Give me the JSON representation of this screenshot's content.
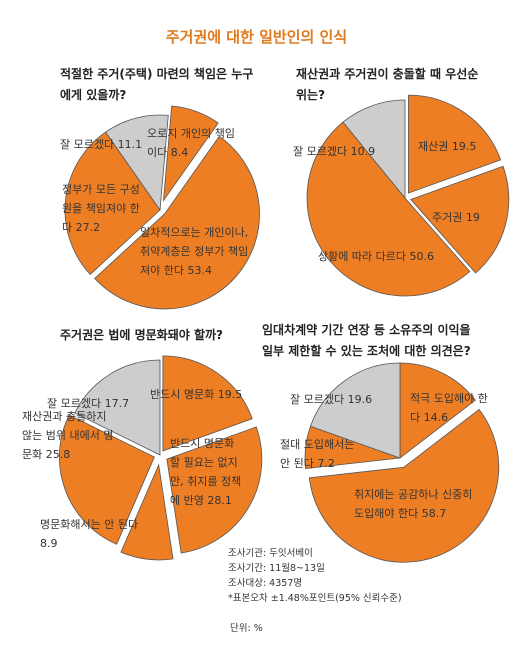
{
  "title": "주거권에 대한 일반인의 인식",
  "colors": {
    "accent": "#e07a1f",
    "slice_main": "#ee7e24",
    "slice_dontknow": "#cdcdcd",
    "stroke": "#555555",
    "text": "#333333"
  },
  "chart_data": [
    {
      "type": "pie",
      "question": [
        "적절한 주거(주택) 마련의 책임은 누구",
        "에게 있을까?"
      ],
      "slices": [
        {
          "label": [
            "오로지 개인의 책임",
            "이다 8.4"
          ],
          "value": 8.4
        },
        {
          "label": [
            "일차적으로는 개인이나,",
            "취약계층은 정부가 책임",
            "져야 한다 53.4"
          ],
          "value": 53.4
        },
        {
          "label": [
            "정부가 모든 구성",
            "원을 책임져야 한",
            "다 27.2"
          ],
          "value": 27.2
        },
        {
          "label": [
            "잘 모르겠다 11.1"
          ],
          "value": 11.1
        }
      ]
    },
    {
      "type": "pie",
      "question": [
        "재산권과 주거권이 충돌할 때 우선순",
        "위는?"
      ],
      "slices": [
        {
          "label": [
            "재산권 19.5"
          ],
          "value": 19.5
        },
        {
          "label": [
            "주거권 19"
          ],
          "value": 19
        },
        {
          "label": [
            "상황에 따라 다르다 50.6"
          ],
          "value": 50.6
        },
        {
          "label": [
            "잘 모르겠다 10.9"
          ],
          "value": 10.9
        }
      ]
    },
    {
      "type": "pie",
      "question": [
        "주거권은 법에 명문화돼야 할까?"
      ],
      "slices": [
        {
          "label": [
            "반드시 명문화 19.5"
          ],
          "value": 19.5
        },
        {
          "label": [
            "반드시 명문화",
            "할 필요는 없지",
            "만, 취지를 정책",
            "에 반영 28.1"
          ],
          "value": 28.1
        },
        {
          "label": [
            "명문화해서는 안 된다",
            "8.9"
          ],
          "value": 8.9
        },
        {
          "label": [
            "재산권과 충돌하지",
            "않는 범위 내에서 명",
            "문화 25.8"
          ],
          "value": 25.8
        },
        {
          "label": [
            "잘 모르겠다 17.7"
          ],
          "value": 17.7
        }
      ]
    },
    {
      "type": "pie",
      "question": [
        "임대차계약 기간 연장 등 소유주의 이익을",
        "일부 제한할 수 있는 조처에 대한 의견은?"
      ],
      "slices": [
        {
          "label": [
            "적극 도입해야 한",
            "다 14.6"
          ],
          "value": 14.6
        },
        {
          "label": [
            "취지에는 공감하나 신중히",
            "도입해야 한다 58.7"
          ],
          "value": 58.7
        },
        {
          "label": [
            "절대 도입해서는",
            "안 된다 7.2"
          ],
          "value": 7.2
        },
        {
          "label": [
            "잘 모르겠다 19.6"
          ],
          "value": 19.6
        }
      ]
    }
  ],
  "notes": [
    "조사기관: 두잇서베이",
    "조사기간: 11월8~13일",
    "조사대상: 4357명",
    "*표본오차 ±1.48%포인트(95% 신뢰수준)"
  ],
  "unit": "단위: %"
}
